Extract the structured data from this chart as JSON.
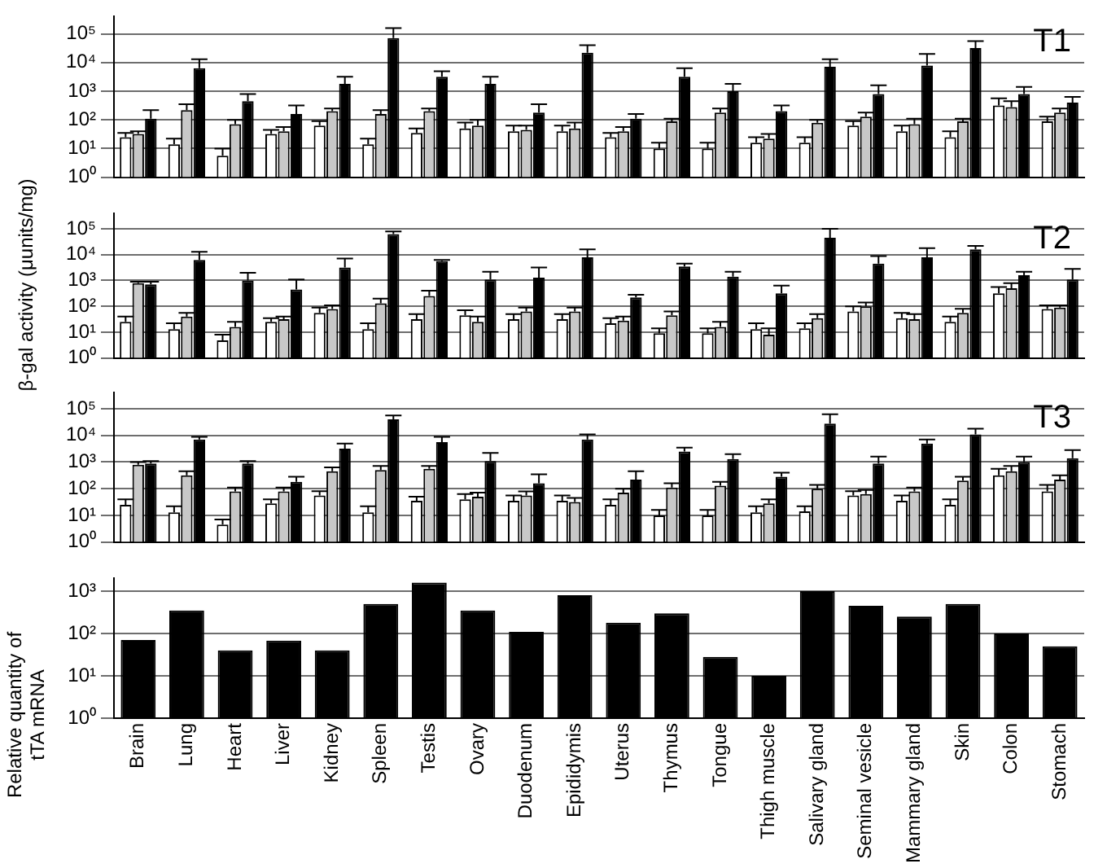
{
  "chart_data": [
    {
      "type": "bar",
      "title": "T1",
      "log": true,
      "grid": "y",
      "tick_labels": "y",
      "categories": [
        null,
        null,
        null,
        null,
        null,
        null,
        null,
        null,
        null,
        null,
        null,
        null,
        null,
        null,
        null,
        null,
        null,
        null,
        null,
        null
      ],
      "ylim": [
        1,
        400000
      ],
      "yticks": [
        {
          "value": 1,
          "label": "10⁰"
        },
        {
          "value": 10,
          "label": "10¹"
        },
        {
          "value": 100,
          "label": "10²"
        },
        {
          "value": 1000,
          "label": "10³"
        },
        {
          "value": 10000,
          "label": "10⁴"
        },
        {
          "value": 100000,
          "label": "10⁵"
        }
      ],
      "series": [
        {
          "color": "#ffffff",
          "values": [
            25,
            14,
            5.6,
            32,
            63,
            14,
            35,
            50,
            40,
            40,
            25,
            10,
            10,
            16,
            16,
            63,
            40,
            25,
            320,
            89
          ],
          "errors": [
            [
              25,
              35
            ],
            [
              14,
              22
            ],
            [
              5.6,
              10
            ],
            [
              32,
              45
            ],
            [
              63,
              90
            ],
            [
              14,
              22
            ],
            [
              35,
              50
            ],
            [
              50,
              80
            ],
            [
              40,
              63
            ],
            [
              40,
              63
            ],
            [
              25,
              35
            ],
            [
              10,
              16
            ],
            [
              10,
              16
            ],
            [
              16,
              25
            ],
            [
              16,
              25
            ],
            [
              63,
              90
            ],
            [
              40,
              63
            ],
            [
              25,
              40
            ],
            [
              320,
              560
            ],
            [
              89,
              130
            ]
          ]
        },
        {
          "color": "#c8c8c8",
          "values": [
            32,
            220,
            71,
            40,
            200,
            160,
            200,
            63,
            45,
            50,
            40,
            89,
            180,
            22,
            79,
            130,
            71,
            89,
            280,
            180
          ],
          "errors": [
            [
              32,
              40
            ],
            [
              220,
              350
            ],
            [
              71,
              100
            ],
            [
              40,
              56
            ],
            [
              200,
              250
            ],
            [
              160,
              220
            ],
            [
              200,
              250
            ],
            [
              63,
              100
            ],
            [
              45,
              63
            ],
            [
              50,
              80
            ],
            [
              40,
              56
            ],
            [
              89,
              110
            ],
            [
              180,
              250
            ],
            [
              22,
              32
            ],
            [
              79,
              100
            ],
            [
              130,
              180
            ],
            [
              71,
              110
            ],
            [
              89,
              110
            ],
            [
              280,
              450
            ],
            [
              180,
              250
            ]
          ]
        },
        {
          "color": "#000000",
          "values": [
            110,
            6300,
            450,
            160,
            1800,
            71000,
            3200,
            1800,
            180,
            22000,
            110,
            3200,
            1000,
            200,
            7100,
            790,
            7900,
            32000,
            790,
            400
          ],
          "errors": [
            [
              110,
              220
            ],
            [
              6300,
              13000
            ],
            [
              450,
              790
            ],
            [
              160,
              320
            ],
            [
              1800,
              3200
            ],
            [
              71000,
              160000
            ],
            [
              3200,
              5000
            ],
            [
              1800,
              3200
            ],
            [
              180,
              350
            ],
            [
              22000,
              40000
            ],
            [
              110,
              160
            ],
            [
              3200,
              6300
            ],
            [
              1000,
              1800
            ],
            [
              200,
              320
            ],
            [
              7100,
              13000
            ],
            [
              790,
              1600
            ],
            [
              7900,
              20000
            ],
            [
              32000,
              56000
            ],
            [
              790,
              1400
            ],
            [
              400,
              630
            ]
          ]
        }
      ]
    },
    {
      "type": "bar",
      "title": "T2",
      "ylabel": "β-gal activity (μunits/mg)",
      "log": true,
      "grid": "y",
      "tick_labels": "y",
      "categories": [
        null,
        null,
        null,
        null,
        null,
        null,
        null,
        null,
        null,
        null,
        null,
        null,
        null,
        null,
        null,
        null,
        null,
        null,
        null,
        null
      ],
      "ylim": [
        1,
        400000
      ],
      "yticks": [
        {
          "value": 1,
          "label": "10⁰"
        },
        {
          "value": 10,
          "label": "10¹"
        },
        {
          "value": 100,
          "label": "10²"
        },
        {
          "value": 1000,
          "label": "10³"
        },
        {
          "value": 10000,
          "label": "10⁴"
        },
        {
          "value": 100000,
          "label": "10⁵"
        }
      ],
      "series": [
        {
          "color": "#ffffff",
          "values": [
            25,
            13,
            4.8,
            25,
            56,
            13,
            32,
            45,
            32,
            32,
            22,
            9,
            9,
            13,
            14,
            63,
            35,
            25,
            320,
            79
          ],
          "errors": [
            [
              25,
              40
            ],
            [
              13,
              22
            ],
            [
              4.8,
              8
            ],
            [
              25,
              35
            ],
            [
              56,
              90
            ],
            [
              13,
              22
            ],
            [
              32,
              50
            ],
            [
              45,
              70
            ],
            [
              32,
              50
            ],
            [
              32,
              50
            ],
            [
              22,
              35
            ],
            [
              9,
              14
            ],
            [
              9,
              14
            ],
            [
              13,
              22
            ],
            [
              14,
              22
            ],
            [
              63,
              100
            ],
            [
              35,
              56
            ],
            [
              25,
              40
            ],
            [
              320,
              560
            ],
            [
              79,
              110
            ]
          ]
        },
        {
          "color": "#c8c8c8",
          "values": [
            790,
            40,
            16,
            32,
            79,
            130,
            250,
            25,
            63,
            63,
            28,
            45,
            16,
            8,
            35,
            100,
            32,
            56,
            500,
            89
          ],
          "errors": [
            [
              790,
              890
            ],
            [
              40,
              56
            ],
            [
              16,
              25
            ],
            [
              32,
              40
            ],
            [
              79,
              110
            ],
            [
              130,
              200
            ],
            [
              250,
              400
            ],
            [
              25,
              40
            ],
            [
              63,
              89
            ],
            [
              63,
              89
            ],
            [
              28,
              40
            ],
            [
              45,
              63
            ],
            [
              16,
              25
            ],
            [
              8,
              14
            ],
            [
              35,
              50
            ],
            [
              100,
              140
            ],
            [
              32,
              50
            ],
            [
              56,
              80
            ],
            [
              500,
              790
            ],
            [
              89,
              110
            ]
          ]
        },
        {
          "color": "#000000",
          "values": [
            710,
            6300,
            1000,
            450,
            3200,
            63000,
            5600,
            1100,
            1300,
            7900,
            220,
            3500,
            1400,
            320,
            45000,
            4500,
            7900,
            16000,
            1600,
            1100
          ],
          "errors": [
            [
              710,
              890
            ],
            [
              6300,
              13000
            ],
            [
              1000,
              2000
            ],
            [
              450,
              1100
            ],
            [
              3200,
              7100
            ],
            [
              63000,
              79000
            ],
            [
              5600,
              6300
            ],
            [
              1100,
              2200
            ],
            [
              1300,
              3200
            ],
            [
              7900,
              16000
            ],
            [
              220,
              280
            ],
            [
              3500,
              4500
            ],
            [
              1400,
              2200
            ],
            [
              320,
              630
            ],
            [
              45000,
              100000
            ],
            [
              4500,
              8900
            ],
            [
              7900,
              18000
            ],
            [
              16000,
              22000
            ],
            [
              1600,
              2200
            ],
            [
              1100,
              2800
            ]
          ]
        }
      ]
    },
    {
      "type": "bar",
      "title": "T3",
      "log": true,
      "grid": "y",
      "tick_labels": "y",
      "categories": [
        null,
        null,
        null,
        null,
        null,
        null,
        null,
        null,
        null,
        null,
        null,
        null,
        null,
        null,
        null,
        null,
        null,
        null,
        null,
        null
      ],
      "ylim": [
        1,
        400000
      ],
      "yticks": [
        {
          "value": 1,
          "label": "10⁰"
        },
        {
          "value": 10,
          "label": "10¹"
        },
        {
          "value": 100,
          "label": "10²"
        },
        {
          "value": 1000,
          "label": "10³"
        },
        {
          "value": 10000,
          "label": "10⁴"
        },
        {
          "value": 100000,
          "label": "10⁵"
        }
      ],
      "series": [
        {
          "color": "#ffffff",
          "values": [
            25,
            13,
            4.5,
            28,
            56,
            13,
            35,
            40,
            35,
            35,
            25,
            10,
            10,
            13,
            14,
            56,
            35,
            25,
            320,
            79
          ],
          "errors": [
            [
              25,
              40
            ],
            [
              13,
              22
            ],
            [
              4.5,
              7
            ],
            [
              28,
              40
            ],
            [
              56,
              80
            ],
            [
              13,
              22
            ],
            [
              35,
              50
            ],
            [
              40,
              63
            ],
            [
              35,
              56
            ],
            [
              35,
              56
            ],
            [
              25,
              40
            ],
            [
              10,
              16
            ],
            [
              10,
              16
            ],
            [
              13,
              22
            ],
            [
              14,
              22
            ],
            [
              56,
              80
            ],
            [
              35,
              56
            ],
            [
              25,
              40
            ],
            [
              320,
              560
            ],
            [
              79,
              140
            ]
          ]
        },
        {
          "color": "#c8c8c8",
          "values": [
            790,
            320,
            79,
            79,
            450,
            500,
            560,
            50,
            56,
            32,
            71,
            110,
            130,
            28,
            100,
            63,
            79,
            200,
            450,
            220
          ],
          "errors": [
            [
              790,
              1000
            ],
            [
              320,
              450
            ],
            [
              79,
              110
            ],
            [
              79,
              110
            ],
            [
              450,
              630
            ],
            [
              500,
              710
            ],
            [
              560,
              710
            ],
            [
              50,
              71
            ],
            [
              56,
              79
            ],
            [
              32,
              45
            ],
            [
              71,
              100
            ],
            [
              110,
              160
            ],
            [
              130,
              180
            ],
            [
              28,
              40
            ],
            [
              100,
              140
            ],
            [
              63,
              89
            ],
            [
              79,
              110
            ],
            [
              200,
              280
            ],
            [
              450,
              710
            ],
            [
              220,
              320
            ]
          ]
        },
        {
          "color": "#000000",
          "values": [
            890,
            7100,
            890,
            180,
            3200,
            40000,
            5600,
            1100,
            160,
            7100,
            220,
            2500,
            1300,
            280,
            28000,
            890,
            5000,
            11000,
            1000,
            1400
          ],
          "errors": [
            [
              890,
              1100
            ],
            [
              7100,
              8900
            ],
            [
              890,
              1100
            ],
            [
              180,
              280
            ],
            [
              3200,
              5000
            ],
            [
              40000,
              56000
            ],
            [
              5600,
              8900
            ],
            [
              1100,
              2200
            ],
            [
              160,
              350
            ],
            [
              7100,
              11000
            ],
            [
              220,
              450
            ],
            [
              2500,
              3500
            ],
            [
              1300,
              2000
            ],
            [
              280,
              400
            ],
            [
              28000,
              63000
            ],
            [
              890,
              1600
            ],
            [
              5000,
              7100
            ],
            [
              11000,
              18000
            ],
            [
              1000,
              1600
            ],
            [
              1400,
              2800
            ]
          ]
        }
      ]
    },
    {
      "type": "bar",
      "ylabel": "Relative quantity of tTA mRNA",
      "log": true,
      "grid": "y",
      "categories": [
        "Brain",
        "Lung",
        "Heart",
        "Liver",
        "Kidney",
        "Spleen",
        "Testis",
        "Ovary",
        "Duodenum",
        "Epididymis",
        "Uterus",
        "Thymus",
        "Tongue",
        "Thigh muscle",
        "Salivary gland",
        "Seminal vesicle",
        "Mammary gland",
        "Skin",
        "Colon",
        "Stomach"
      ],
      "ylim": [
        1,
        2000
      ],
      "yticks": [
        {
          "value": 1,
          "label": "10⁰"
        },
        {
          "value": 10,
          "label": "10¹"
        },
        {
          "value": 100,
          "label": "10²"
        },
        {
          "value": 1000,
          "label": "10³"
        }
      ],
      "series": [
        {
          "color": "#000000",
          "values": [
            70,
            350,
            40,
            68,
            40,
            500,
            1600,
            350,
            110,
            800,
            180,
            300,
            28,
            10,
            1000,
            450,
            250,
            500,
            100,
            50
          ]
        }
      ]
    }
  ]
}
